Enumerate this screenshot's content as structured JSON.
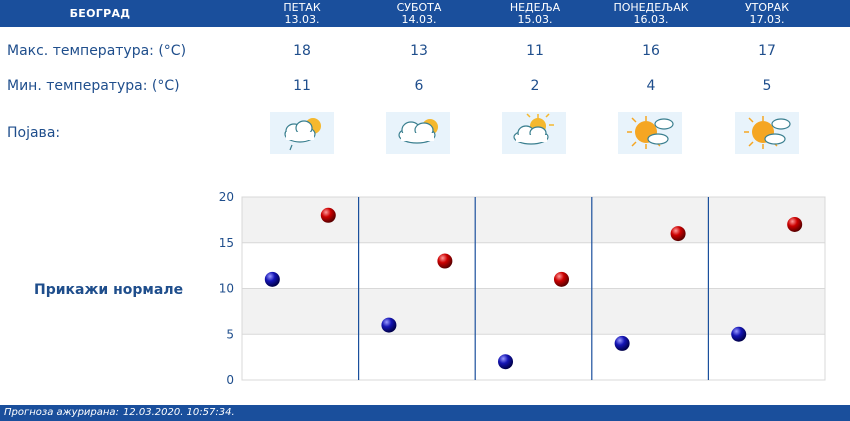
{
  "header": {
    "city": "БЕОГРАД",
    "days": [
      {
        "name": "ПЕТАК",
        "date": "13.03."
      },
      {
        "name": "СУБОТА",
        "date": "14.03."
      },
      {
        "name": "НЕДЕЉА",
        "date": "15.03."
      },
      {
        "name": "ПОНЕДЕЉАК",
        "date": "16.03."
      },
      {
        "name": "УТОРАК",
        "date": "17.03."
      }
    ]
  },
  "rows": {
    "max_label": "Макс. температура: (°C)",
    "min_label": "Мин. температура: (°C)",
    "phenomenon_label": "Појава:",
    "max_values": [
      "18",
      "13",
      "11",
      "16",
      "17"
    ],
    "min_values": [
      "11",
      "6",
      "2",
      "4",
      "5"
    ],
    "icons": [
      "partly-cloudy-drizzle-icon",
      "cloudy-sun-icon",
      "partly-cloudy-icon",
      "sunny-clouds-icon",
      "sunny-clouds-icon"
    ]
  },
  "normals_button": "Прикажи нормале",
  "footer": {
    "label": "Прогноза ажурирана:",
    "timestamp": "12.03.2020. 10:57:34."
  },
  "colors": {
    "header_bg": "#1a4f9c",
    "max_marker": "#cc0000",
    "min_marker": "#1515b5",
    "band_light": "#f2f2f2"
  },
  "chart_data": {
    "type": "scatter",
    "categories": [
      "13.03.",
      "14.03.",
      "15.03.",
      "16.03.",
      "17.03."
    ],
    "series": [
      {
        "name": "",
        "values": [
          11,
          6,
          2,
          4,
          5
        ]
      },
      {
        "name": "",
        "values": [
          18,
          13,
          11,
          16,
          17
        ]
      }
    ],
    "yticks": [
      "0",
      "5",
      "10",
      "15",
      "20"
    ],
    "ylim": [
      0,
      20
    ],
    "grid": true
  }
}
